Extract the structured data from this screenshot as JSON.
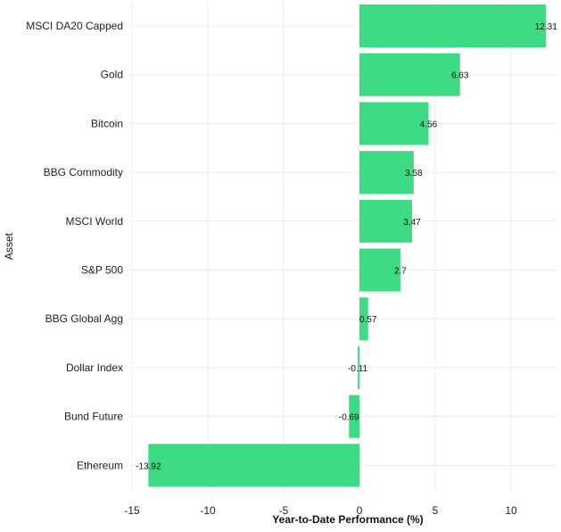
{
  "chart_data": {
    "type": "bar",
    "orientation": "horizontal",
    "title": "",
    "xlabel": "Year-to-Date Performance (%)",
    "ylabel": "Asset",
    "xlim": [
      -15,
      12.5
    ],
    "xticks": [
      -15,
      -10,
      -5,
      0,
      5,
      10
    ],
    "grid": true,
    "bar_color": "#3ddc84",
    "categories": [
      "MSCI DA20 Capped",
      "Gold",
      "Bitcoin",
      "BBG Commodity",
      "MSCI World",
      "S&P 500",
      "BBG Global Agg",
      "Dollar Index",
      "Bund Future",
      "Ethereum"
    ],
    "values": [
      12.31,
      6.63,
      4.56,
      3.58,
      3.47,
      2.7,
      0.57,
      -0.11,
      -0.69,
      -13.92
    ],
    "value_labels": [
      "12.31",
      "6.63",
      "4.56",
      "3.58",
      "3.47",
      "2.7",
      "0.57",
      "-0.11",
      "-0.69",
      "-13.92"
    ]
  }
}
